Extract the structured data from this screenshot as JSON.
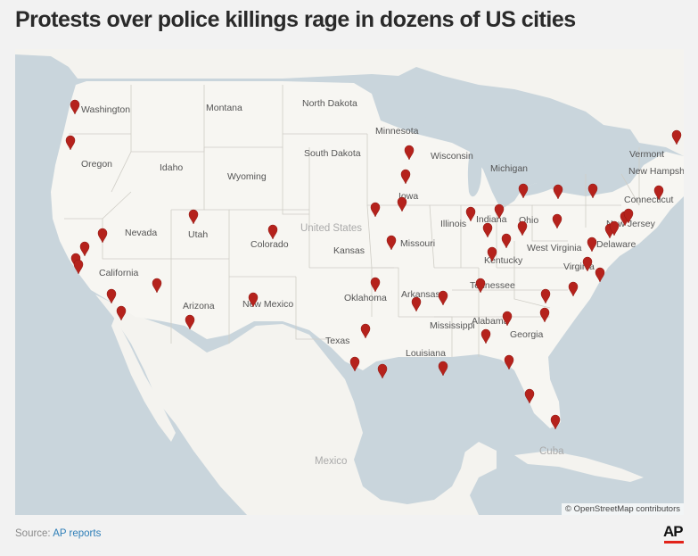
{
  "title": "Protests over police killings rage in dozens of US cities",
  "map": {
    "credit": "© OpenStreetMap contributors",
    "country_labels": [
      {
        "id": "us",
        "text": "United States"
      },
      {
        "id": "mexico",
        "text": "Mexico"
      },
      {
        "id": "cuba",
        "text": "Cuba"
      }
    ],
    "state_labels": [
      {
        "id": "washington",
        "text": "Washington"
      },
      {
        "id": "montana",
        "text": "Montana"
      },
      {
        "id": "north-dakota",
        "text": "North Dakota"
      },
      {
        "id": "minnesota",
        "text": "Minnesota"
      },
      {
        "id": "oregon",
        "text": "Oregon"
      },
      {
        "id": "idaho",
        "text": "Idaho"
      },
      {
        "id": "wyoming",
        "text": "Wyoming"
      },
      {
        "id": "south-dakota",
        "text": "South Dakota"
      },
      {
        "id": "wisconsin",
        "text": "Wisconsin"
      },
      {
        "id": "michigan",
        "text": "Michigan"
      },
      {
        "id": "vermont",
        "text": "Vermont"
      },
      {
        "id": "new-hampshire",
        "text": "New Hampshire"
      },
      {
        "id": "iowa",
        "text": "Iowa"
      },
      {
        "id": "connecticut",
        "text": "Connecticut"
      },
      {
        "id": "nevada",
        "text": "Nevada"
      },
      {
        "id": "utah",
        "text": "Utah"
      },
      {
        "id": "colorado",
        "text": "Colorado"
      },
      {
        "id": "illinois",
        "text": "Illinois"
      },
      {
        "id": "indiana",
        "text": "Indiana"
      },
      {
        "id": "ohio",
        "text": "Ohio"
      },
      {
        "id": "new-jersey",
        "text": "New Jersey"
      },
      {
        "id": "missouri",
        "text": "Missouri"
      },
      {
        "id": "kansas",
        "text": "Kansas"
      },
      {
        "id": "west-virginia",
        "text": "West Virginia"
      },
      {
        "id": "delaware",
        "text": "Delaware"
      },
      {
        "id": "kentucky",
        "text": "Kentucky"
      },
      {
        "id": "california",
        "text": "California"
      },
      {
        "id": "virginia",
        "text": "Virginia"
      },
      {
        "id": "tennessee",
        "text": "Tennessee"
      },
      {
        "id": "oklahoma",
        "text": "Oklahoma"
      },
      {
        "id": "arkansas",
        "text": "Arkansas"
      },
      {
        "id": "arizona",
        "text": "Arizona"
      },
      {
        "id": "new-mexico",
        "text": "New Mexico"
      },
      {
        "id": "mississippi",
        "text": "Mississippi"
      },
      {
        "id": "alabama",
        "text": "Alabama"
      },
      {
        "id": "georgia",
        "text": "Georgia"
      },
      {
        "id": "texas",
        "text": "Texas"
      },
      {
        "id": "louisiana",
        "text": "Louisiana"
      }
    ],
    "marker_count": 59,
    "marker_color": "#b5221c",
    "land_color": "#f7f6f2",
    "water_color": "#c9d5dc"
  },
  "source": {
    "prefix": "Source: ",
    "link": "AP reports"
  },
  "logo": "AP"
}
